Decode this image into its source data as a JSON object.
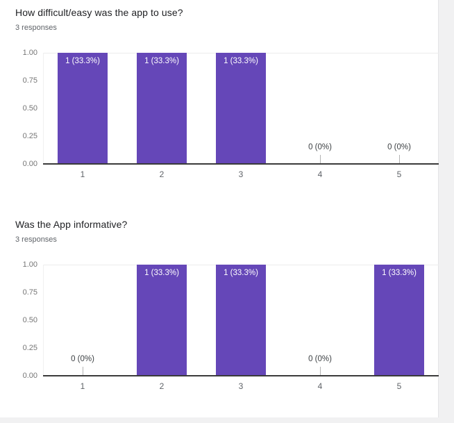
{
  "page": {
    "background_color": "#f1f1f2",
    "card_background_color": "#ffffff"
  },
  "colors": {
    "bar": "#6547b8",
    "axis": "#3a3a3a",
    "gridline": "#ececec",
    "title_text": "#202124",
    "subtitle_text": "#5f6368",
    "ytick_text": "#757575",
    "category_text": "#5f6368",
    "zero_label_text": "#3c4043",
    "bar_label_text": "#ffffff"
  },
  "chart_data": [
    {
      "type": "bar",
      "title": "How difficult/easy was the app to use?",
      "subtitle": "3 responses",
      "categories": [
        "1",
        "2",
        "3",
        "4",
        "5"
      ],
      "values": [
        1,
        1,
        1,
        0,
        0
      ],
      "bar_labels": [
        "1 (33.3%)",
        "1 (33.3%)",
        "1 (33.3%)",
        "0 (0%)",
        "0 (0%)"
      ],
      "xlabel": "",
      "ylabel": "",
      "ylim": [
        0,
        1
      ],
      "yticks": [
        0,
        0.25,
        0.5,
        0.75,
        1
      ],
      "ytick_labels": [
        "0.00",
        "0.25",
        "0.50",
        "0.75",
        "1.00"
      ],
      "legend": "none",
      "grid": "top-line-only",
      "bar_color": "#6547b8"
    },
    {
      "type": "bar",
      "title": "Was the App informative?",
      "subtitle": "3 responses",
      "categories": [
        "1",
        "2",
        "3",
        "4",
        "5"
      ],
      "values": [
        0,
        1,
        1,
        0,
        1
      ],
      "bar_labels": [
        "0 (0%)",
        "1 (33.3%)",
        "1 (33.3%)",
        "0 (0%)",
        "1 (33.3%)"
      ],
      "xlabel": "",
      "ylabel": "",
      "ylim": [
        0,
        1
      ],
      "yticks": [
        0,
        0.25,
        0.5,
        0.75,
        1
      ],
      "ytick_labels": [
        "0.00",
        "0.25",
        "0.50",
        "0.75",
        "1.00"
      ],
      "legend": "none",
      "grid": "top-line-only",
      "bar_color": "#6547b8"
    }
  ]
}
